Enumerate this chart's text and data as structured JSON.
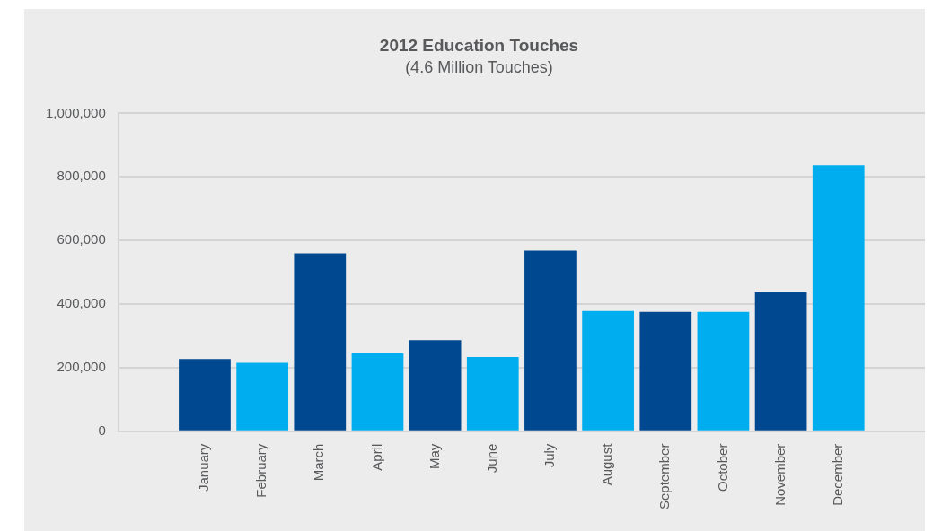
{
  "chart_data": {
    "type": "bar",
    "title": "2012 Education Touches",
    "subtitle": "(4.6 Million Touches)",
    "categories": [
      "January",
      "February",
      "March",
      "April",
      "May",
      "June",
      "July",
      "August",
      "September",
      "October",
      "November",
      "December"
    ],
    "values": [
      227000,
      215000,
      559000,
      245000,
      286000,
      233000,
      568000,
      378000,
      375000,
      375000,
      437000,
      837000
    ],
    "colors": [
      "#004990",
      "#00aeef",
      "#004990",
      "#00aeef",
      "#004990",
      "#00aeef",
      "#004990",
      "#00aeef",
      "#004990",
      "#00aeef",
      "#004990",
      "#00aeef"
    ],
    "ylim": [
      0,
      1000000
    ],
    "yticks": [
      0,
      {
        "value": 200000,
        "label": "200,000"
      },
      {
        "value": 400000,
        "label": "400,000"
      },
      {
        "value": 600000,
        "label": "600,000"
      },
      {
        "value": 800000,
        "label": "800,000"
      },
      {
        "value": 1000000,
        "label": "1,000,000"
      }
    ],
    "grid": "y",
    "legend": false
  }
}
